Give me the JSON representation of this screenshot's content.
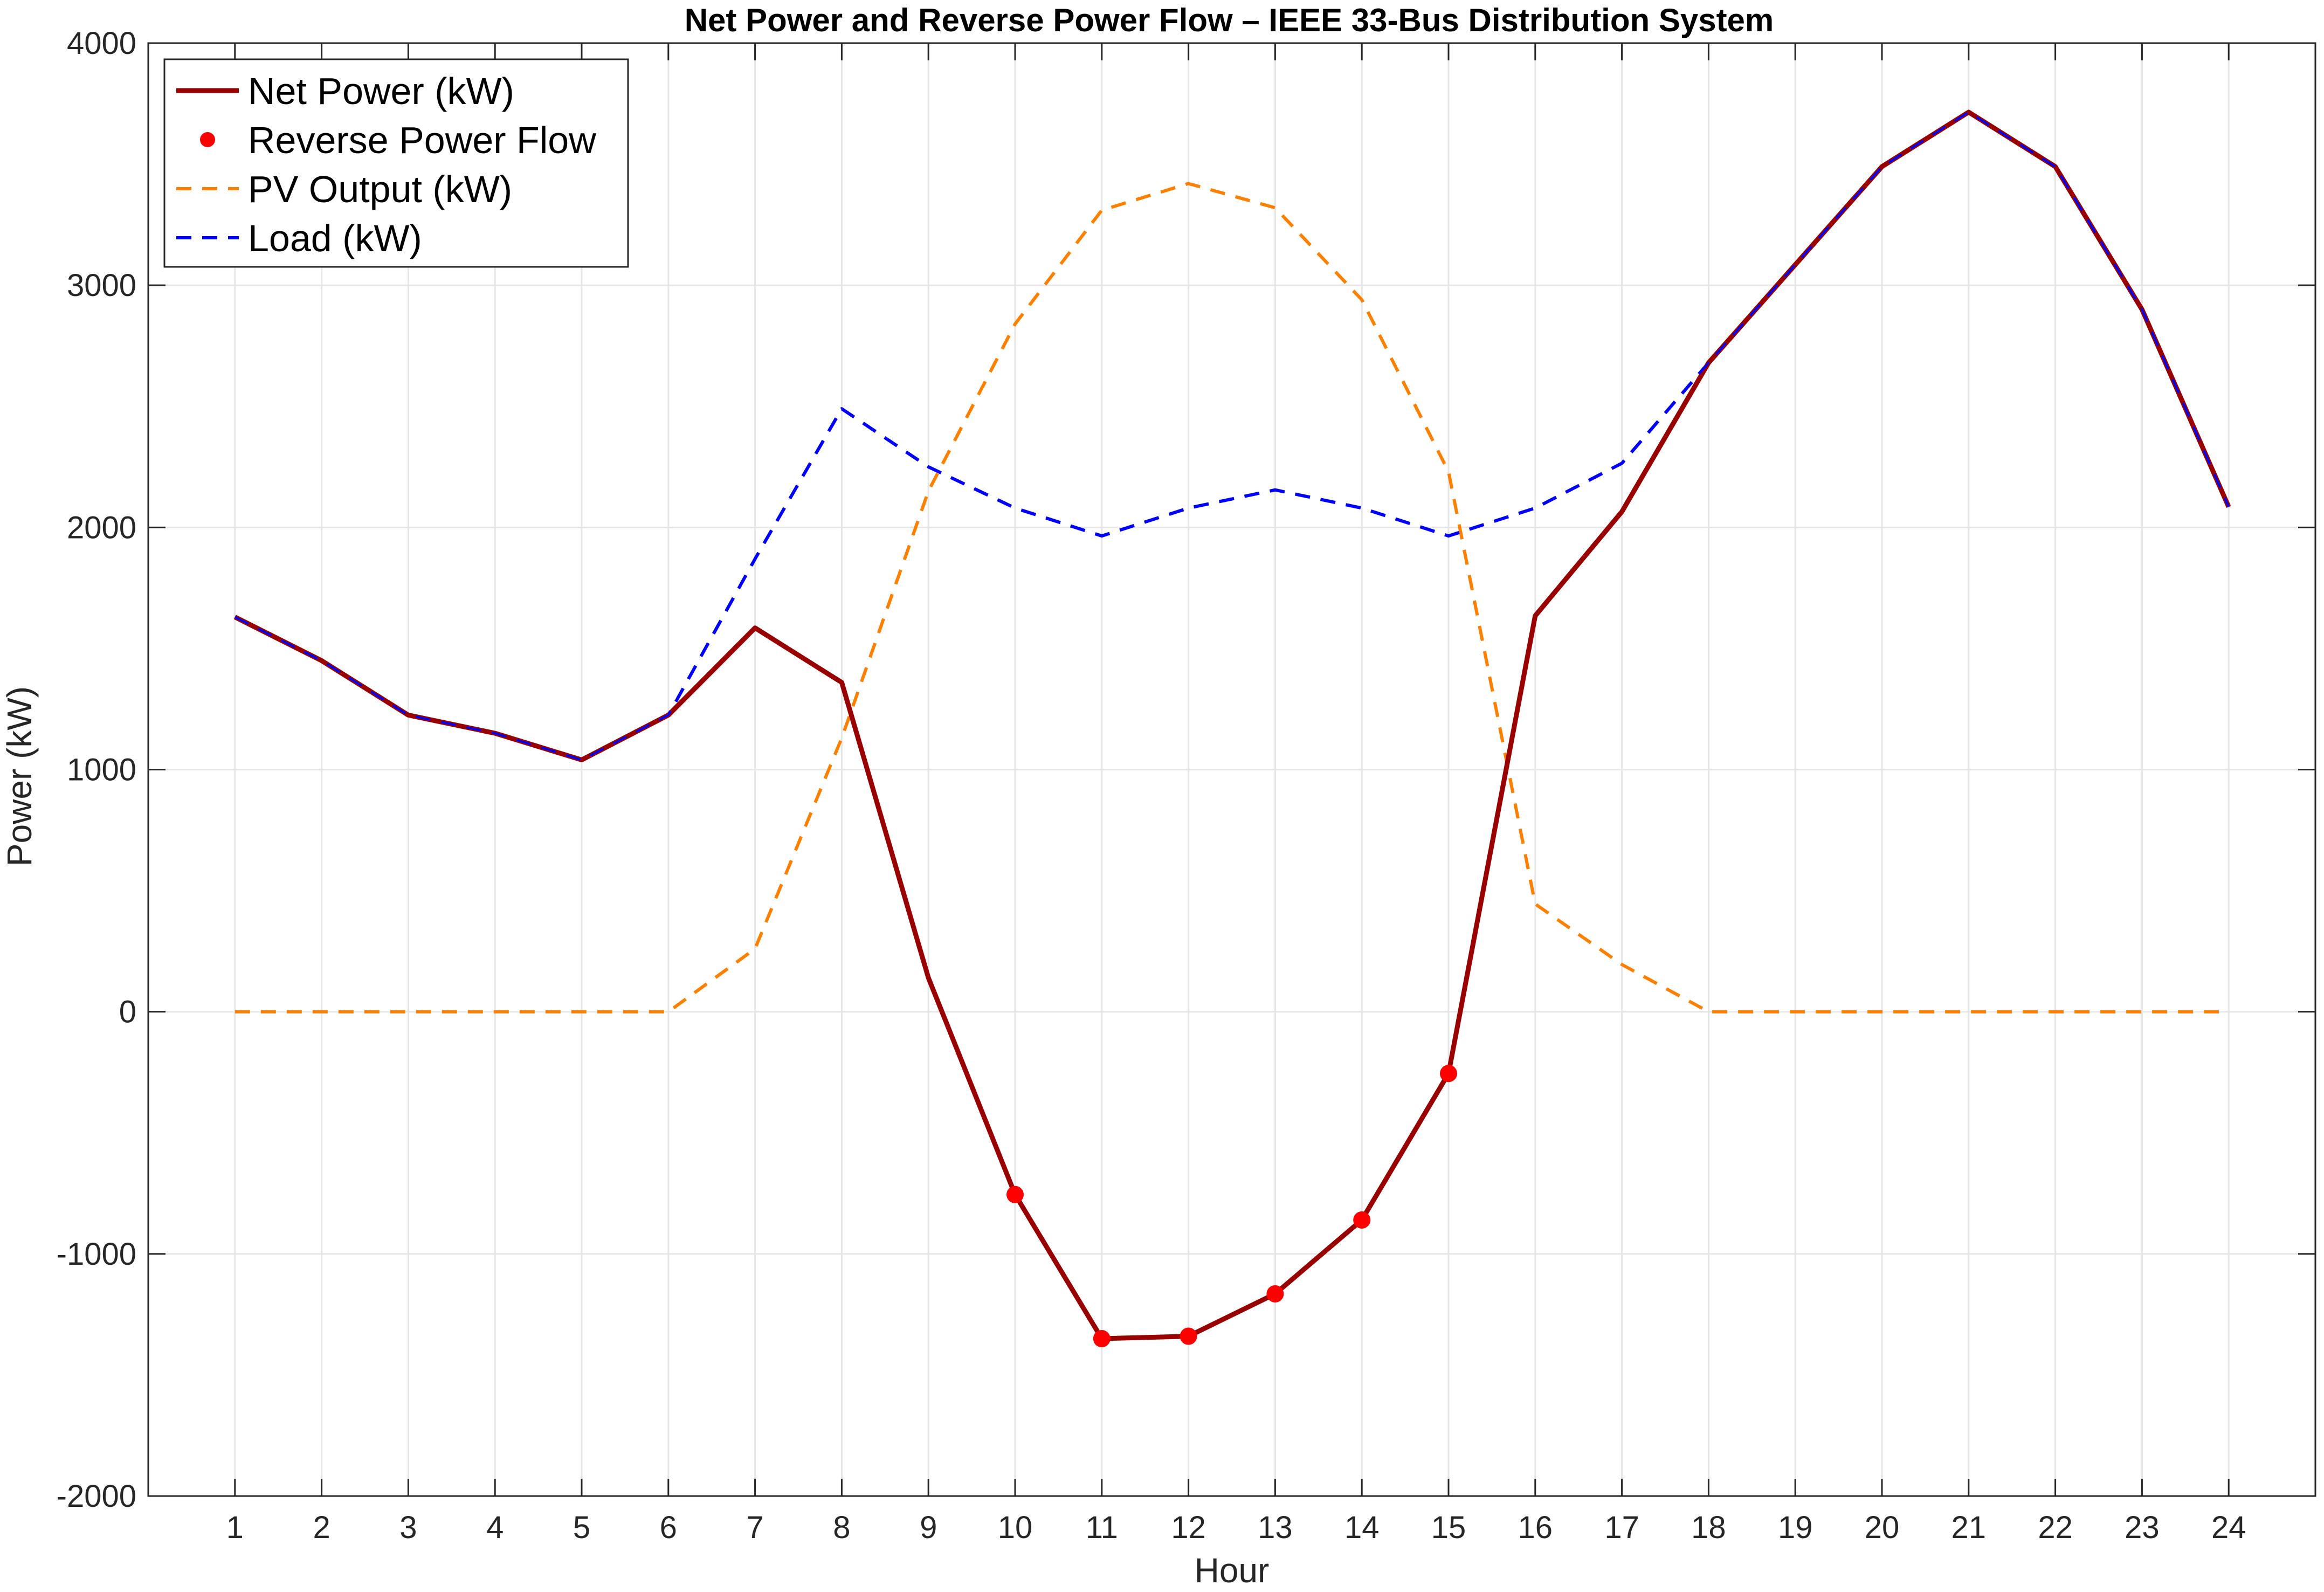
{
  "chart_data": {
    "type": "line",
    "title": "Net Power and Reverse Power Flow – IEEE 33-Bus Distribution System",
    "xlabel": "Hour",
    "ylabel": "Power (kW)",
    "xlim": [
      0,
      25
    ],
    "ylim": [
      -2000,
      4000
    ],
    "xticks": [
      1,
      2,
      3,
      4,
      5,
      6,
      7,
      8,
      9,
      10,
      11,
      12,
      13,
      14,
      15,
      16,
      17,
      18,
      19,
      20,
      21,
      22,
      23,
      24
    ],
    "yticks": [
      -2000,
      -1000,
      0,
      1000,
      2000,
      3000,
      4000
    ],
    "grid": true,
    "legend_position": "top-left",
    "x": [
      1,
      2,
      3,
      4,
      5,
      6,
      7,
      8,
      9,
      10,
      11,
      12,
      13,
      14,
      15,
      16,
      17,
      18,
      19,
      20,
      21,
      22,
      23,
      24
    ],
    "series": [
      {
        "name": "Net Power (kW)",
        "style": "solid-line",
        "color": "#990000",
        "values": [
          1630,
          1450,
          1225,
          1150,
          1040,
          1225,
          1585,
          1360,
          140,
          -755,
          -1350,
          -1340,
          -1165,
          -860,
          -255,
          1635,
          2065,
          2680,
          3085,
          3490,
          3715,
          3490,
          2900,
          2085
        ]
      },
      {
        "name": "Reverse Power Flow",
        "style": "markers",
        "color": "#ff0000",
        "x": [
          10,
          11,
          12,
          13,
          14,
          15
        ],
        "values": [
          -755,
          -1350,
          -1340,
          -1165,
          -860,
          -255
        ]
      },
      {
        "name": "PV Output (kW)",
        "style": "dashed-line",
        "color": "#ff8000",
        "values": [
          0,
          0,
          0,
          0,
          0,
          0,
          260,
          1130,
          2150,
          2840,
          3310,
          3420,
          3320,
          2940,
          2230,
          445,
          195,
          0,
          0,
          0,
          0,
          0,
          0,
          0
        ]
      },
      {
        "name": "Load (kW)",
        "style": "dashed-line",
        "color": "#0000ff",
        "values": [
          1630,
          1450,
          1225,
          1150,
          1040,
          1225,
          1870,
          2490,
          2250,
          2080,
          1965,
          2080,
          2155,
          2080,
          1965,
          2080,
          2265,
          2680,
          3085,
          3490,
          3715,
          3490,
          2900,
          2085
        ]
      }
    ]
  }
}
